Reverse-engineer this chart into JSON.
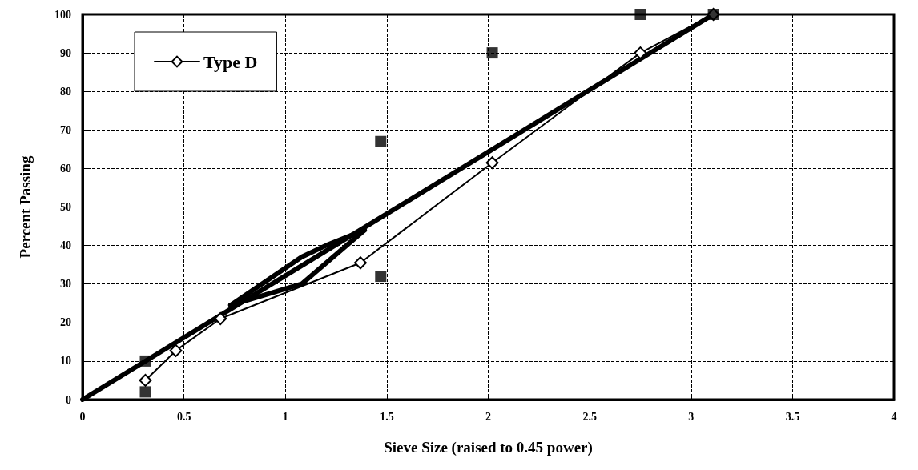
{
  "chart_data": {
    "type": "line",
    "xlabel": "Sieve Size (raised to 0.45 power)",
    "ylabel": "Percent Passing",
    "xlim": [
      0,
      4
    ],
    "xticks": [
      0,
      0.5,
      1,
      1.5,
      2,
      2.5,
      3,
      3.5,
      4
    ],
    "ylim": [
      0,
      100
    ],
    "yticks": [
      0,
      10,
      20,
      30,
      40,
      50,
      60,
      70,
      80,
      90,
      100
    ],
    "grid": true,
    "legend": "top left",
    "series": [
      {
        "name": "Type D",
        "color": "#000000",
        "marker": "diamond",
        "x": [
          0.31,
          0.46,
          0.68,
          1.37,
          2.02,
          2.75,
          3.11
        ],
        "values": [
          5,
          12.7,
          21,
          35.5,
          61.5,
          90,
          100
        ]
      },
      {
        "color": "#000000",
        "marker": "none",
        "x": [
          0,
          3.11
        ],
        "values": [
          0,
          100
        ]
      },
      {
        "color": "#000000",
        "marker": "none",
        "x": [
          0.73,
          1.08,
          1.2,
          1.39
        ],
        "values": [
          24.5,
          37,
          40,
          44
        ]
      },
      {
        "color": "#000000",
        "marker": "none",
        "x": [
          0.73,
          1.08,
          1.39
        ],
        "values": [
          24.5,
          30,
          44
        ]
      },
      {
        "type": "scatter",
        "color": "#000000",
        "marker": "square",
        "x": [
          0.31,
          0.31,
          1.47,
          1.47,
          2.02,
          2.75,
          3.11
        ],
        "values": [
          2,
          10,
          32,
          67,
          90,
          100,
          100
        ]
      }
    ]
  }
}
